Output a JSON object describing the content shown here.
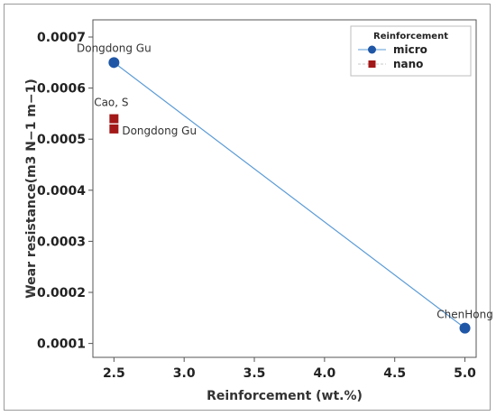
{
  "chart_data": {
    "type": "scatter",
    "title": "",
    "xlabel": "Reinforcement (wt.%)",
    "ylabel": "Wear resistance(m3 N−1 m−1)",
    "xlim": [
      2.35,
      5.08
    ],
    "ylim": [
      7.28e-05,
      0.0007336
    ],
    "xticks": [
      2.5,
      3.0,
      3.5,
      4.0,
      4.5,
      5.0
    ],
    "xtick_labels": [
      "2.5",
      "3.0",
      "3.5",
      "4.0",
      "4.5",
      "5.0"
    ],
    "yticks": [
      0.0001,
      0.0002,
      0.0003,
      0.0004,
      0.0005,
      0.0006,
      0.0007
    ],
    "ytick_labels": [
      "0.0001",
      "0.0002",
      "0.0003",
      "0.0004",
      "0.0005",
      "0.0006",
      "0.0007"
    ],
    "grid": false,
    "legend": {
      "title": "Reinforcement",
      "position": "top-right"
    },
    "series": [
      {
        "name": "micro",
        "marker": "circle",
        "color": "#1f56a6",
        "line_color": "#5b9bd5",
        "connected": true,
        "points": [
          {
            "x": 2.5,
            "y": 0.00065,
            "label": "Dongdong Gu"
          },
          {
            "x": 5.0,
            "y": 0.00013,
            "label": "ChenHong"
          }
        ]
      },
      {
        "name": "nano",
        "marker": "square",
        "color": "#a31818",
        "connected": false,
        "points": [
          {
            "x": 2.5,
            "y": 0.00054,
            "label": "Cao, S"
          },
          {
            "x": 2.5,
            "y": 0.00052,
            "label": "Dongdong Gu"
          }
        ]
      }
    ]
  }
}
